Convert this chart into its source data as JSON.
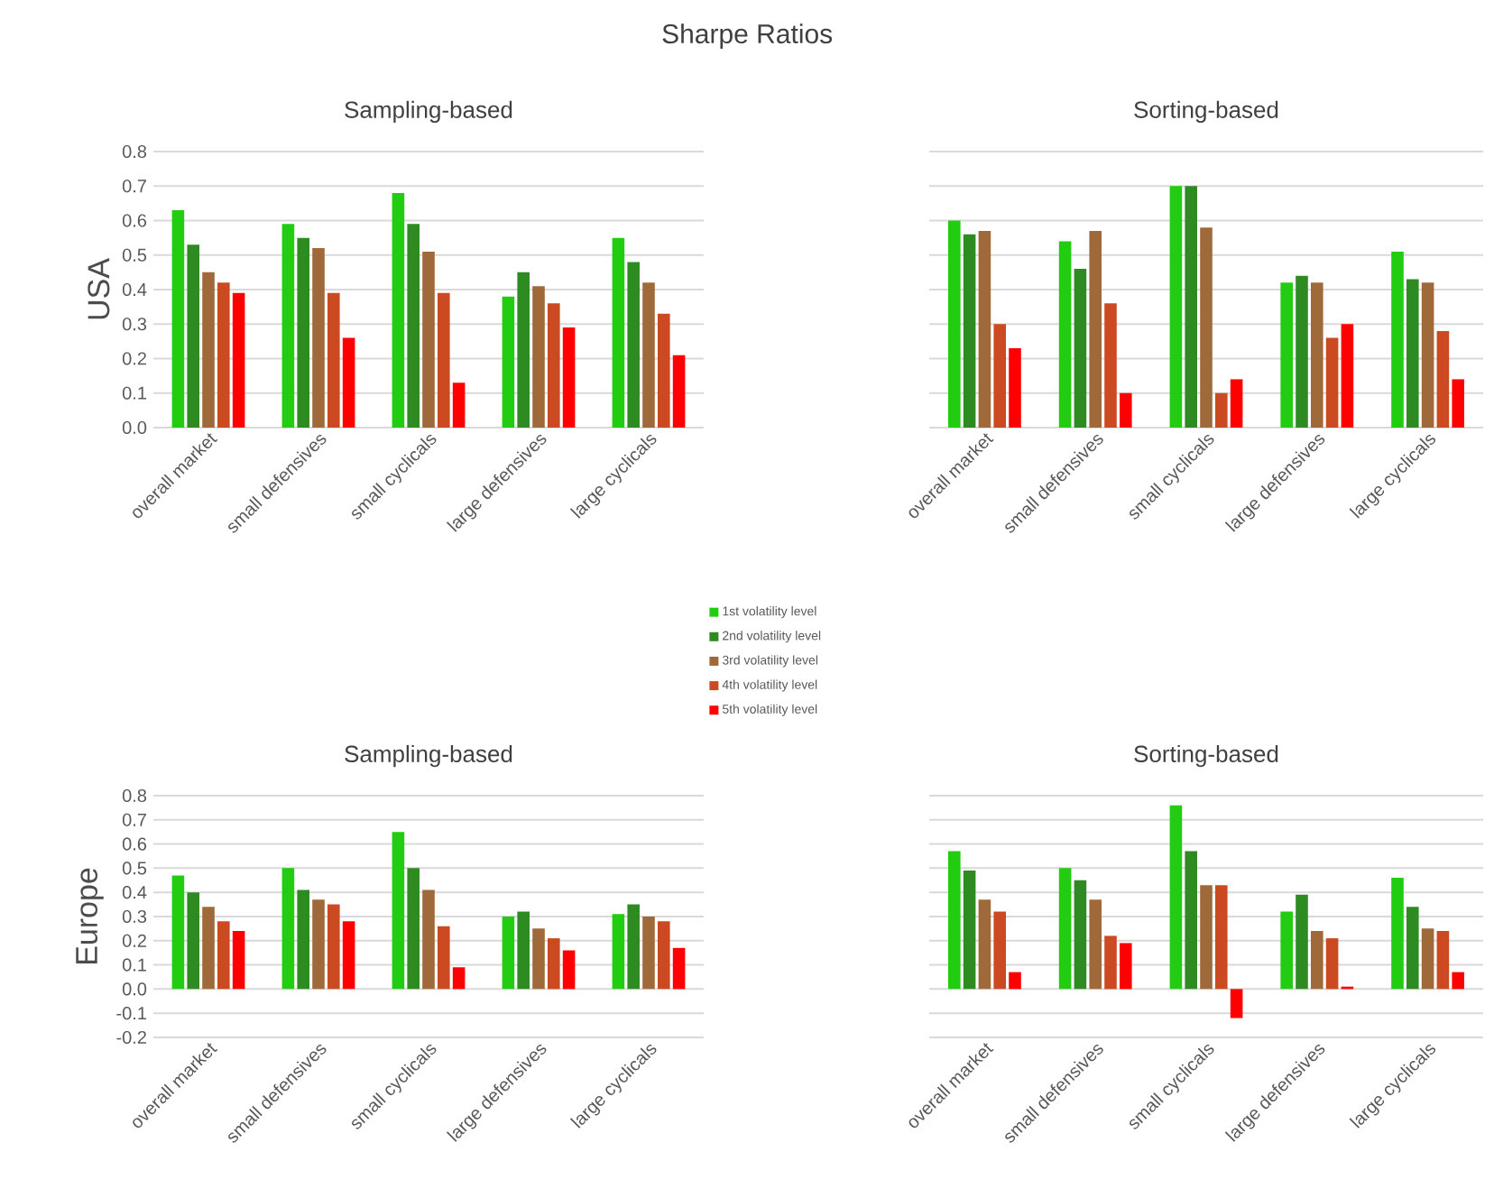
{
  "chart_data": [
    {
      "type": "bar",
      "title": "Sharpe Ratios",
      "subtitle": "Sampling-based",
      "ylabel": "USA",
      "categories": [
        "overall market",
        "small defensives",
        "small cyclicals",
        "large defensives",
        "large cyclicals"
      ],
      "series": [
        {
          "name": "1st volatility level",
          "color": "#22cc11",
          "values": [
            0.63,
            0.59,
            0.68,
            0.38,
            0.55
          ]
        },
        {
          "name": "2nd volatility level",
          "color": "#2e8b22",
          "values": [
            0.53,
            0.55,
            0.59,
            0.45,
            0.48
          ]
        },
        {
          "name": "3rd volatility level",
          "color": "#a0693a",
          "values": [
            0.45,
            0.52,
            0.51,
            0.41,
            0.42
          ]
        },
        {
          "name": "4th volatility level",
          "color": "#cc4a22",
          "values": [
            0.42,
            0.39,
            0.39,
            0.36,
            0.33
          ]
        },
        {
          "name": "5th volatility level",
          "color": "#ff0000",
          "values": [
            0.39,
            0.26,
            0.13,
            0.29,
            0.21
          ]
        }
      ],
      "ylim": [
        0,
        0.8
      ],
      "yticks": [
        {
          "value": 0,
          "label": "0.0"
        },
        0.1,
        0.2,
        0.3,
        0.4,
        0.5,
        0.6,
        0.7,
        0.8
      ],
      "grid": "y",
      "legend": "bottom right"
    },
    {
      "type": "bar",
      "title": "Sorting-based",
      "categories": [
        "overall market",
        "small defensives",
        "small cyclicals",
        "large defensives",
        "large cyclicals"
      ],
      "series": [
        {
          "color": "#22cc11",
          "values": [
            0.6,
            0.54,
            0.7,
            0.42,
            0.51
          ]
        },
        {
          "color": "#2e8b22",
          "values": [
            0.56,
            0.46,
            0.7,
            0.44,
            0.43
          ]
        },
        {
          "color": "#a0693a",
          "values": [
            0.57,
            0.57,
            0.58,
            0.42,
            0.42
          ]
        },
        {
          "color": "#cc4a22",
          "values": [
            0.3,
            0.36,
            0.1,
            0.26,
            0.28
          ]
        },
        {
          "color": "#ff0000",
          "values": [
            0.23,
            0.1,
            0.14,
            0.3,
            0.14
          ]
        }
      ],
      "ylim": [
        0,
        0.8
      ],
      "yticks": [
        0,
        0.1,
        0.2,
        0.3,
        0.4,
        0.5,
        0.6,
        0.7,
        0.8
      ],
      "grid": "y",
      "tick_labels": "x"
    },
    {
      "type": "bar",
      "title": "Sampling-based",
      "ylabel": "Europe",
      "categories": [
        "overall market",
        "small defensives",
        "small cyclicals",
        "large defensives",
        "large cyclicals"
      ],
      "series": [
        {
          "color": "#22cc11",
          "values": [
            0.47,
            0.5,
            0.65,
            0.3,
            0.31
          ]
        },
        {
          "color": "#2e8b22",
          "values": [
            0.4,
            0.41,
            0.5,
            0.32,
            0.35
          ]
        },
        {
          "color": "#a0693a",
          "values": [
            0.34,
            0.37,
            0.41,
            0.25,
            0.3
          ]
        },
        {
          "color": "#cc4a22",
          "values": [
            0.28,
            0.35,
            0.26,
            0.21,
            0.28
          ]
        },
        {
          "color": "#ff0000",
          "values": [
            0.24,
            0.28,
            0.09,
            0.16,
            0.17
          ]
        }
      ],
      "ylim": [
        -0.2,
        0.8
      ],
      "yticks": [
        -0.2,
        -0.1,
        {
          "value": 0,
          "label": "0.0"
        },
        0.1,
        0.2,
        0.3,
        0.4,
        0.5,
        0.6,
        0.7,
        0.8
      ],
      "grid": "y"
    },
    {
      "type": "bar",
      "title": "Sorting-based",
      "categories": [
        "overall market",
        "small defensives",
        "small cyclicals",
        "large defensives",
        "large cyclicals"
      ],
      "series": [
        {
          "color": "#22cc11",
          "values": [
            0.57,
            0.5,
            0.76,
            0.32,
            0.46
          ]
        },
        {
          "color": "#2e8b22",
          "values": [
            0.49,
            0.45,
            0.57,
            0.39,
            0.34
          ]
        },
        {
          "color": "#a0693a",
          "values": [
            0.37,
            0.37,
            0.43,
            0.24,
            0.25
          ]
        },
        {
          "color": "#cc4a22",
          "values": [
            0.32,
            0.22,
            0.43,
            0.21,
            0.24
          ]
        },
        {
          "color": "#ff0000",
          "values": [
            0.07,
            0.19,
            -0.12,
            0.01,
            0.07
          ]
        }
      ],
      "ylim": [
        -0.2,
        0.8
      ],
      "yticks": [
        -0.2,
        -0.1,
        0,
        0.1,
        0.2,
        0.3,
        0.4,
        0.5,
        0.6,
        0.7,
        0.8
      ],
      "grid": "y",
      "tick_labels": "x"
    }
  ]
}
